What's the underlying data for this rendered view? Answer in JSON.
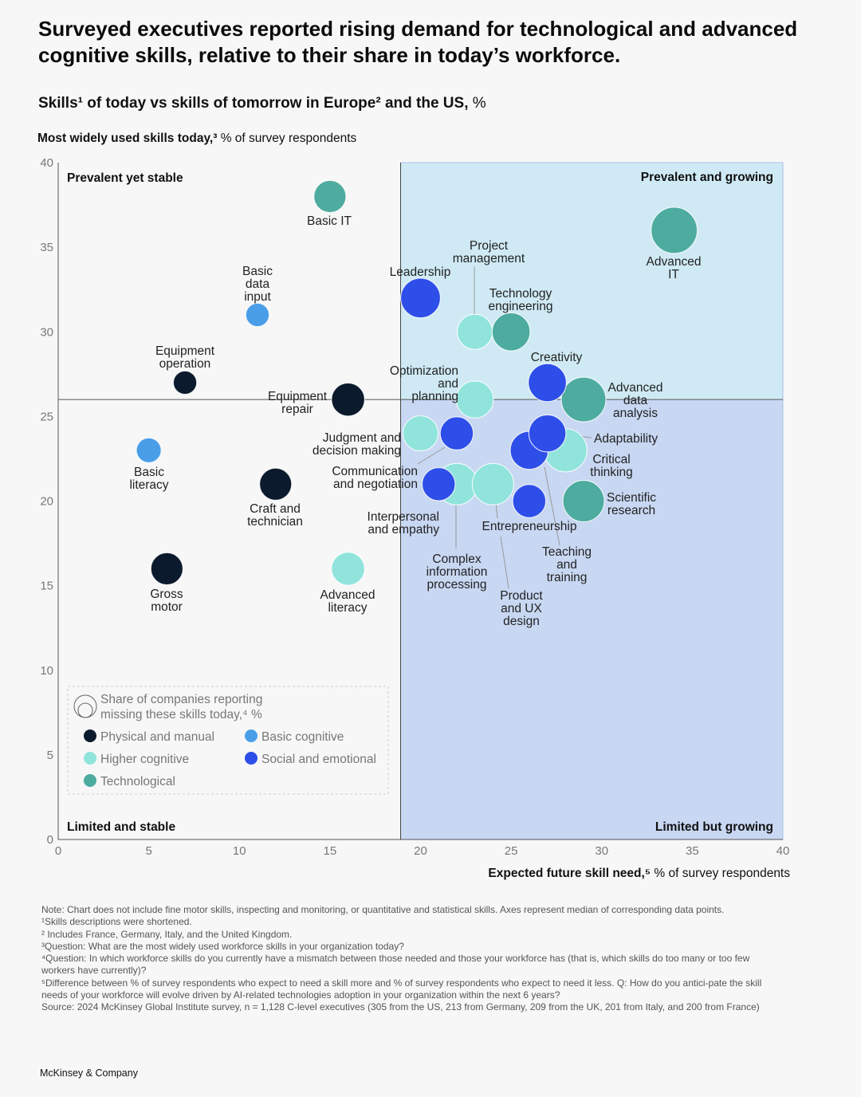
{
  "title": "Surveyed executives reported rising demand for technological and advanced cognitive skills, relative to their share in today’s workforce.",
  "subtitle": {
    "main": "Skills¹ of today vs skills of tomorrow in Europe² and the US,",
    "unit": " %"
  },
  "chart_data": {
    "type": "scatter",
    "subtype": "bubble",
    "y_label": {
      "bold": "Most widely used skills today,³",
      "rest": " % of survey respondents"
    },
    "x_label": {
      "bold": "Expected future skill need,⁵",
      "rest": " % of survey respondents"
    },
    "xlim": [
      0,
      40
    ],
    "ylim": [
      0,
      40
    ],
    "x_ticks": [
      "0",
      "5",
      "10",
      "15",
      "20",
      "25",
      "30",
      "35",
      "40"
    ],
    "y_ticks": [
      "0",
      "5",
      "10",
      "15",
      "20",
      "25",
      "30",
      "35",
      "40"
    ],
    "median_x": 18.9,
    "median_y": 26,
    "quadrants": {
      "top_left": "Prevalent yet stable",
      "top_right": "Prevalent and growing",
      "bottom_left": "Limited and stable",
      "bottom_right": "Limited but growing"
    },
    "quadrant_colors": {
      "top_right": "#cfeaf4",
      "bottom_right": "#c8d7f2",
      "left": "#f7f7f7"
    },
    "legend": {
      "size_title": "Share of companies reporting missing these skills today,⁴ %",
      "size_title_lines": [
        "Share of companies reporting",
        "missing these skills today,⁴ %"
      ],
      "categories": [
        {
          "key": "physical",
          "label": "Physical and manual",
          "color": "#0b1a2c"
        },
        {
          "key": "basic",
          "label": "Basic cognitive",
          "color": "#4a9ee8"
        },
        {
          "key": "higher",
          "label": "Higher cognitive",
          "color": "#90e4dc"
        },
        {
          "key": "social",
          "label": "Social and emotional",
          "color": "#2d4ee8"
        },
        {
          "key": "tech",
          "label": "Technological",
          "color": "#4dab9f"
        }
      ]
    },
    "points": [
      {
        "name": "Basic IT",
        "lines": [
          "Basic IT"
        ],
        "category": "tech",
        "x": 15,
        "y": 38,
        "gap_share_est": 15
      },
      {
        "name": "Basic data input",
        "lines": [
          "Basic",
          "data",
          "input"
        ],
        "category": "basic",
        "x": 11,
        "y": 31,
        "gap_share_est": 8
      },
      {
        "name": "Equipment operation",
        "lines": [
          "Equipment",
          "operation"
        ],
        "category": "physical",
        "x": 7,
        "y": 27,
        "gap_share_est": 8
      },
      {
        "name": "Equipment repair",
        "lines": [
          "Equipment",
          "repair"
        ],
        "category": "physical",
        "x": 16,
        "y": 26,
        "gap_share_est": 16
      },
      {
        "name": "Basic literacy",
        "lines": [
          "Basic",
          "literacy"
        ],
        "category": "basic",
        "x": 5,
        "y": 23,
        "gap_share_est": 9
      },
      {
        "name": "Craft and technician",
        "lines": [
          "Craft and",
          "technician"
        ],
        "category": "physical",
        "x": 12,
        "y": 21,
        "gap_share_est": 15
      },
      {
        "name": "Gross motor",
        "lines": [
          "Gross",
          "motor"
        ],
        "category": "physical",
        "x": 6,
        "y": 16,
        "gap_share_est": 15
      },
      {
        "name": "Advanced literacy",
        "lines": [
          "Advanced",
          "literacy"
        ],
        "category": "higher",
        "x": 16,
        "y": 16,
        "gap_share_est": 16
      },
      {
        "name": "Leadership",
        "lines": [
          "Leadership"
        ],
        "category": "social",
        "x": 20,
        "y": 32,
        "gap_share_est": 23
      },
      {
        "name": "Project management",
        "lines": [
          "Project",
          "management"
        ],
        "category": "higher",
        "x": 23,
        "y": 30,
        "gap_share_est": 18
      },
      {
        "name": "Technology engineering",
        "lines": [
          "Technology",
          "engineering"
        ],
        "category": "tech",
        "x": 25,
        "y": 30,
        "gap_share_est": 21
      },
      {
        "name": "Advanced IT",
        "lines": [
          "Advanced",
          "IT"
        ],
        "category": "tech",
        "x": 34,
        "y": 36,
        "gap_share_est": 31
      },
      {
        "name": "Optimization and planning",
        "lines": [
          "Optimization",
          "and",
          "planning"
        ],
        "category": "higher",
        "x": 23,
        "y": 26,
        "gap_share_est": 20
      },
      {
        "name": "Advanced data analysis",
        "lines": [
          "Advanced",
          "data",
          "analysis"
        ],
        "category": "tech",
        "x": 29,
        "y": 26,
        "gap_share_est": 29
      },
      {
        "name": "Creativity",
        "lines": [
          "Creativity"
        ],
        "category": "social",
        "x": 27,
        "y": 27,
        "gap_share_est": 21
      },
      {
        "name": "Judgment and decision making",
        "lines": [
          "Judgment and",
          "decision making"
        ],
        "category": "higher",
        "x": 20,
        "y": 24,
        "gap_share_est": 18
      },
      {
        "name": "Communication and negotiation",
        "lines": [
          "Communication",
          "and negotiation"
        ],
        "category": "social",
        "x": 22,
        "y": 24,
        "gap_share_est": 16
      },
      {
        "name": "Complex information processing",
        "lines": [
          "Complex",
          "information",
          "processing"
        ],
        "category": "higher",
        "x": 22,
        "y": 21,
        "gap_share_est": 25
      },
      {
        "name": "Interpersonal and empathy",
        "lines": [
          "Interpersonal",
          "and empathy"
        ],
        "category": "social",
        "x": 21,
        "y": 21,
        "gap_share_est": 16
      },
      {
        "name": "Product and UX design",
        "lines": [
          "Product",
          "and UX",
          "design"
        ],
        "category": "higher",
        "x": 24,
        "y": 21,
        "gap_share_est": 25
      },
      {
        "name": "Critical thinking",
        "lines": [
          "Critical",
          "thinking"
        ],
        "category": "higher",
        "x": 28,
        "y": 23,
        "gap_share_est": 27
      },
      {
        "name": "Teaching and training",
        "lines": [
          "Teaching",
          "and",
          "training"
        ],
        "category": "social",
        "x": 26,
        "y": 23,
        "gap_share_est": 21
      },
      {
        "name": "Adaptability",
        "lines": [
          "Adaptability"
        ],
        "category": "social",
        "x": 27,
        "y": 24,
        "gap_share_est": 20
      },
      {
        "name": "Entrepreneurship",
        "lines": [
          "Entrepreneurship"
        ],
        "category": "social",
        "x": 26,
        "y": 20,
        "gap_share_est": 16
      },
      {
        "name": "Scientific research",
        "lines": [
          "Scientific",
          "research"
        ],
        "category": "tech",
        "x": 29,
        "y": 20,
        "gap_share_est": 25
      }
    ]
  },
  "notes": [
    "Note: Chart does not include fine motor skills, inspecting and monitoring, or quantitative and statistical skills. Axes represent median of corresponding data points.",
    "¹Skills descriptions were shortened.",
    "² Includes France, Germany, Italy, and the United Kingdom.",
    "³Question: What are the most widely used workforce skills in your organization today?",
    "⁴Question: In which workforce skills do you currently have a mismatch between those needed and those your workforce has (that is, which skills do too many or too few workers have currently)?",
    "⁵Difference between % of survey respondents who expect to need a skill more and % of survey respondents who expect to need it less. Q: How do you antici-pate the skill needs of your workforce will evolve driven by AI-related technologies adoption in your organization within the next 6 years?",
    "Source: 2024 McKinsey Global Institute survey, n = 1,128 C-level executives (305 from the US, 213 from Germany, 209 from the UK, 201 from Italy, and 200 from France)"
  ],
  "brand": "McKinsey & Company"
}
